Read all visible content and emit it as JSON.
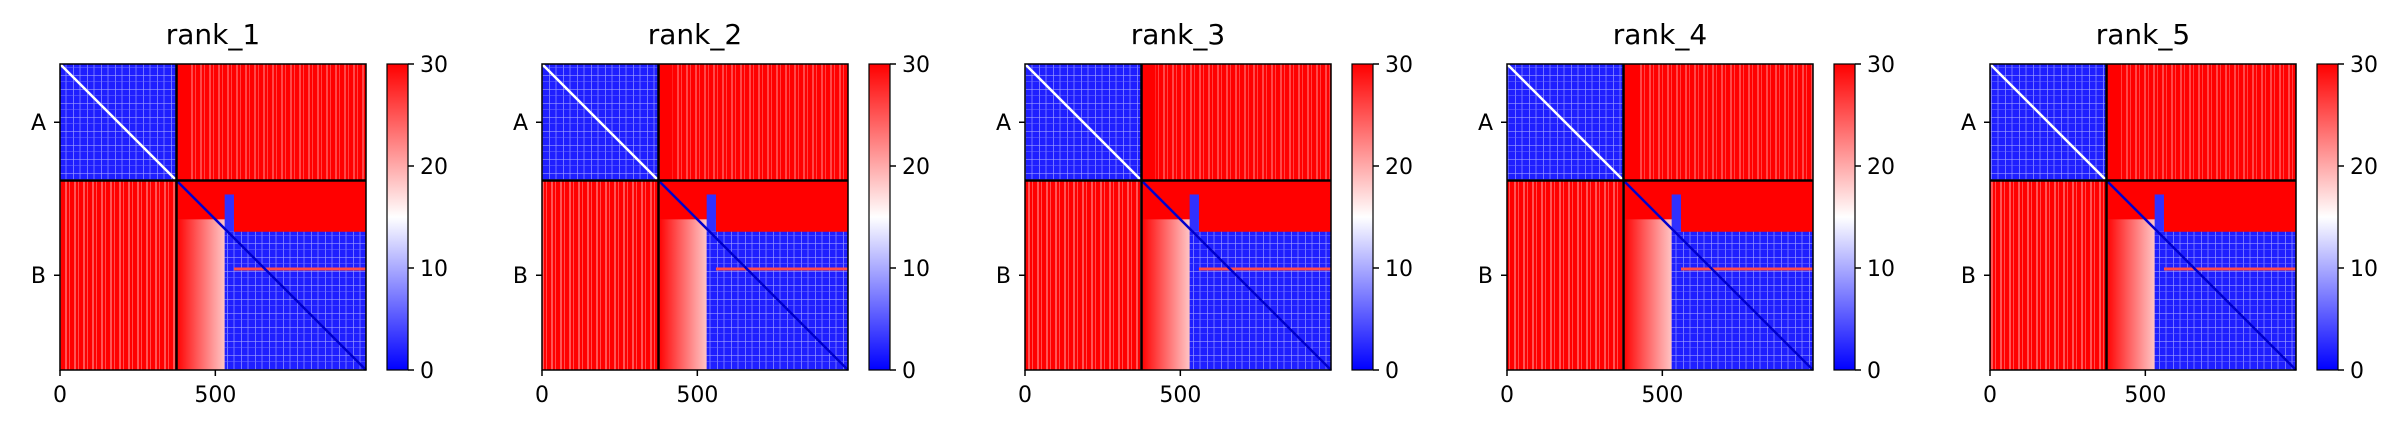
{
  "chart_data": [
    {
      "type": "heatmap",
      "title": "rank_1",
      "chain_labels": [
        "A",
        "B"
      ],
      "x_ticks": [
        0,
        500
      ],
      "xlim": [
        0,
        985
      ],
      "chain_boundary": 375,
      "colorbar": {
        "min": 0,
        "max": 30,
        "ticks": [
          0,
          10,
          20,
          30
        ],
        "colors": [
          "#0000ff",
          "#ffffff",
          "#ff0000"
        ]
      },
      "grid": false
    },
    {
      "type": "heatmap",
      "title": "rank_2",
      "chain_labels": [
        "A",
        "B"
      ],
      "x_ticks": [
        0,
        500
      ],
      "xlim": [
        0,
        985
      ],
      "chain_boundary": 375,
      "colorbar": {
        "min": 0,
        "max": 30,
        "ticks": [
          0,
          10,
          20,
          30
        ],
        "colors": [
          "#0000ff",
          "#ffffff",
          "#ff0000"
        ]
      },
      "grid": false
    },
    {
      "type": "heatmap",
      "title": "rank_3",
      "chain_labels": [
        "A",
        "B"
      ],
      "x_ticks": [
        0,
        500
      ],
      "xlim": [
        0,
        985
      ],
      "chain_boundary": 375,
      "colorbar": {
        "min": 0,
        "max": 30,
        "ticks": [
          0,
          10,
          20,
          30
        ],
        "colors": [
          "#0000ff",
          "#ffffff",
          "#ff0000"
        ]
      },
      "grid": false
    },
    {
      "type": "heatmap",
      "title": "rank_4",
      "chain_labels": [
        "A",
        "B"
      ],
      "x_ticks": [
        0,
        500
      ],
      "xlim": [
        0,
        985
      ],
      "chain_boundary": 375,
      "colorbar": {
        "min": 0,
        "max": 30,
        "ticks": [
          0,
          10,
          20,
          30
        ],
        "colors": [
          "#0000ff",
          "#ffffff",
          "#ff0000"
        ]
      },
      "grid": false
    },
    {
      "type": "heatmap",
      "title": "rank_5",
      "chain_labels": [
        "A",
        "B"
      ],
      "x_ticks": [
        0,
        500
      ],
      "xlim": [
        0,
        985
      ],
      "chain_boundary": 375,
      "colorbar": {
        "min": 0,
        "max": 30,
        "ticks": [
          0,
          10,
          20,
          30
        ],
        "colors": [
          "#0000ff",
          "#ffffff",
          "#ff0000"
        ]
      },
      "grid": false
    }
  ]
}
